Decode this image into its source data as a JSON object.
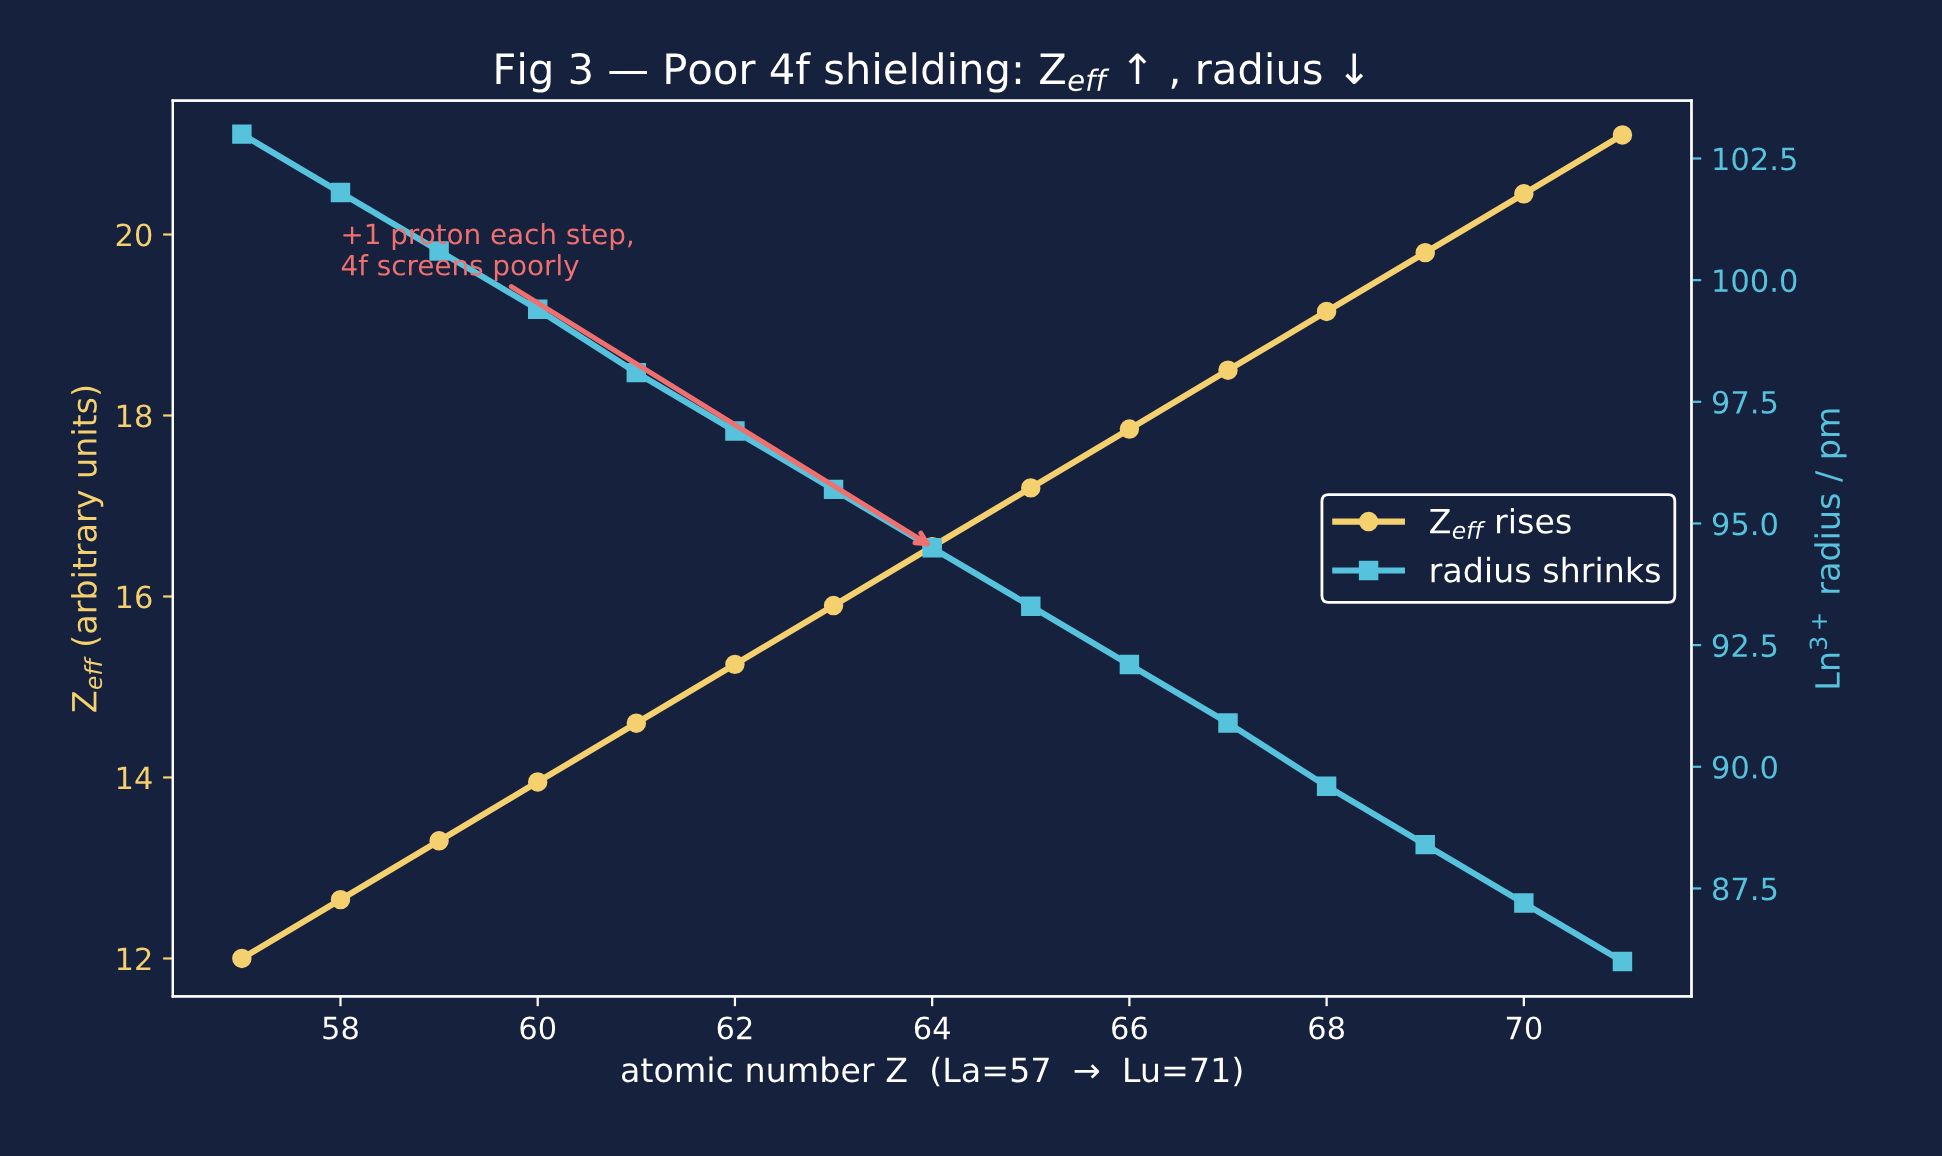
{
  "chart_data": {
    "type": "line",
    "title": "Fig 3 — Poor 4f shielding: Z$_{eff}$ ↑ , radius ↓",
    "xlabel": "atomic number Z  (La=57  →  Lu=71)",
    "ylabel": "Z$_{eff}$ (arbitrary units)",
    "y2label": "Ln$^{3+}$ radius / pm",
    "x": [
      57,
      58,
      59,
      60,
      61,
      62,
      63,
      64,
      65,
      66,
      67,
      68,
      69,
      70,
      71
    ],
    "series": [
      {
        "name": "Z$_{eff}$ rises",
        "color": "#f5d06f",
        "marker": "circle",
        "values": [
          12.0,
          12.65,
          13.3,
          13.95,
          14.6,
          15.25,
          15.9,
          16.55,
          17.2,
          17.85,
          18.5,
          19.15,
          19.8,
          20.45,
          21.1
        ]
      },
      {
        "name": "radius shrinks",
        "color": "#56c2dc",
        "marker": "square",
        "axis": "y2",
        "values": [
          103.0,
          101.8,
          100.6,
          99.4,
          98.1,
          96.9,
          95.7,
          94.5,
          93.3,
          92.1,
          90.9,
          89.6,
          88.4,
          87.2,
          86.0
        ]
      }
    ],
    "xlim": [
      56.3,
      71.7
    ],
    "xticks": [
      58,
      60,
      62,
      64,
      66,
      68,
      70
    ],
    "ylim": [
      11.58,
      21.48
    ],
    "yticks": [
      12,
      14,
      16,
      18,
      20
    ],
    "y2lim": [
      85.28,
      103.69
    ],
    "y2ticks": [
      87.5,
      {
        "value": 90,
        "label": "90.0"
      },
      92.5,
      {
        "value": 95,
        "label": "95.0"
      },
      97.5,
      {
        "value": 100,
        "label": "100.0"
      },
      102.5
    ],
    "annotations": [
      {
        "text": "+1 proton each step,\n4f screens poorly",
        "x": 64,
        "y": 16.55
      }
    ],
    "legend": "center right",
    "grid": false,
    "line_style": "solid"
  }
}
